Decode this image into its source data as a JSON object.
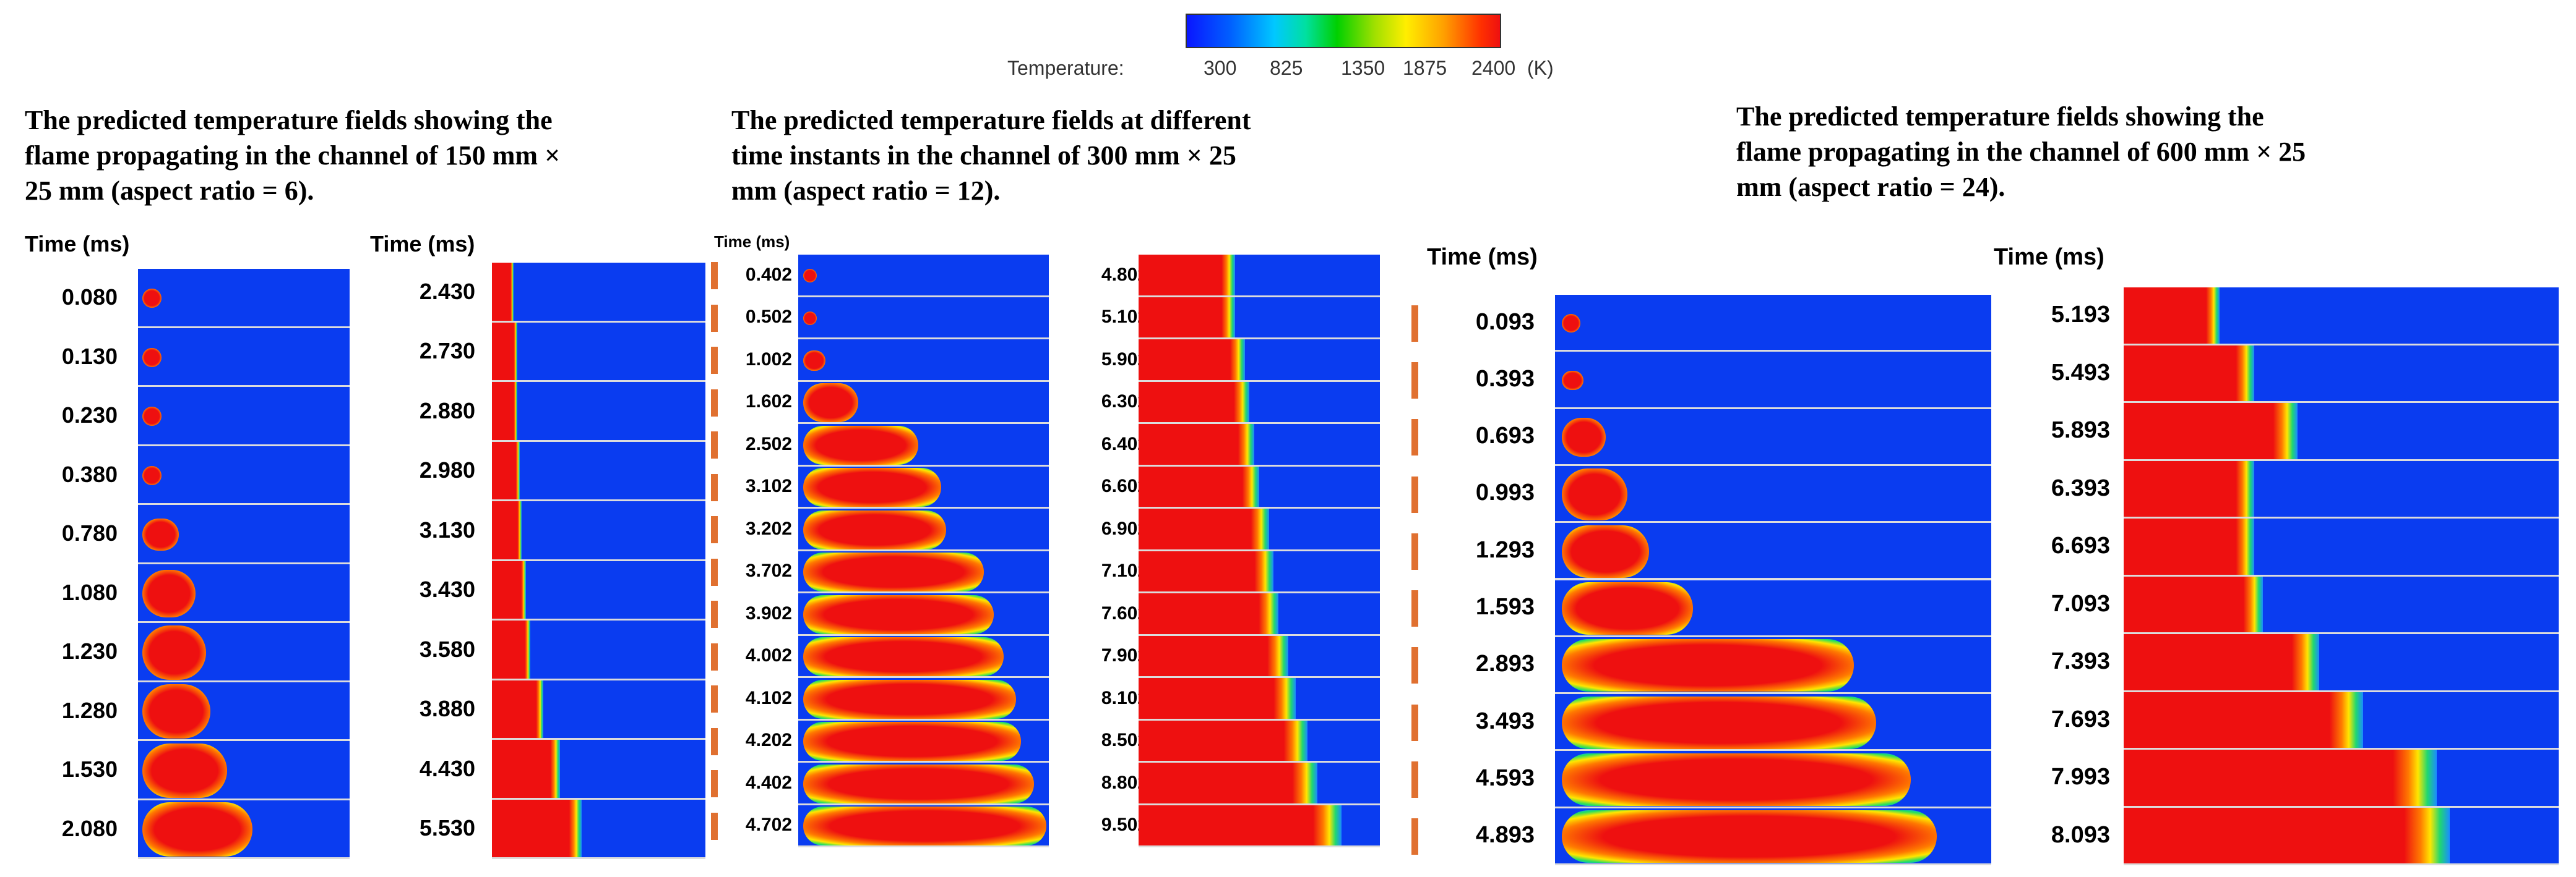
{
  "colorbar": {
    "label": "Temperature:",
    "ticks": [
      "300",
      "825",
      "1350",
      "1875",
      "2400"
    ],
    "unit": "(K)",
    "colors": [
      "#0a16ff",
      "#00c8ff",
      "#00d000",
      "#ffee00",
      "#ee1010"
    ]
  },
  "sections": [
    {
      "title": "The predicted temperature fields showing the flame propagating in the channel of 150 mm × 25 mm (aspect ratio = 6).",
      "title_lines": [
        "The predicted temperature fields showing the",
        "flame propagating in the channel of 150 mm ×",
        "25 mm (aspect ratio = 6)."
      ],
      "columns": [
        {
          "header": "Time (ms)",
          "times": [
            "0.080",
            "0.130",
            "0.230",
            "0.380",
            "0.780",
            "1.080",
            "1.230",
            "1.280",
            "1.530",
            "2.080"
          ],
          "flame_progress": [
            0.04,
            0.04,
            0.05,
            0.07,
            0.17,
            0.25,
            0.3,
            0.32,
            0.4,
            0.52
          ],
          "mode": "kernel"
        },
        {
          "header": "Time (ms)",
          "times": [
            "2.430",
            "2.730",
            "2.880",
            "2.980",
            "3.130",
            "3.430",
            "3.580",
            "3.880",
            "4.430",
            "5.530"
          ],
          "flame_progress": [
            0.1,
            0.12,
            0.12,
            0.13,
            0.14,
            0.16,
            0.18,
            0.24,
            0.32,
            0.42
          ],
          "mode": "front"
        }
      ]
    },
    {
      "title": "The predicted temperature fields at different time instants in the channel of 300 mm × 25 mm (aspect ratio = 12).",
      "title_lines": [
        "The predicted temperature fields at different",
        "time instants in the channel of 300 mm × 25",
        "mm (aspect ratio = 12)."
      ],
      "columns": [
        {
          "header": "Time (ms)",
          "times": [
            "0.402",
            "0.502",
            "1.002",
            "1.602",
            "2.502",
            "3.102",
            "3.202",
            "3.702",
            "3.902",
            "4.002",
            "4.102",
            "4.202",
            "4.402",
            "4.702"
          ],
          "flame_progress": [
            0.03,
            0.04,
            0.09,
            0.22,
            0.46,
            0.55,
            0.57,
            0.72,
            0.76,
            0.8,
            0.85,
            0.87,
            0.92,
            0.97
          ],
          "mode": "kernel"
        },
        {
          "header": "",
          "times": [
            "4.802",
            "5.102",
            "5.902",
            "6.302",
            "6.402",
            "6.602",
            "6.902",
            "7.102",
            "7.602",
            "7.902",
            "8.102",
            "8.502",
            "8.802",
            "9.502"
          ],
          "flame_progress": [
            0.4,
            0.4,
            0.44,
            0.46,
            0.48,
            0.5,
            0.54,
            0.56,
            0.58,
            0.62,
            0.65,
            0.7,
            0.74,
            0.84
          ],
          "mode": "front"
        }
      ]
    },
    {
      "title": "The predicted temperature fields showing the flame propagating in the channel of 600 mm × 25 mm (aspect ratio = 24).",
      "title_lines": [
        "The predicted temperature fields showing the",
        "flame propagating in the channel of 600 mm × 25",
        "mm (aspect ratio = 24)."
      ],
      "columns": [
        {
          "header": "Time (ms)",
          "times": [
            "0.093",
            "0.393",
            "0.693",
            "0.993",
            "1.293",
            "1.593",
            "2.893",
            "3.493",
            "4.593",
            "4.893"
          ],
          "flame_progress": [
            0.03,
            0.05,
            0.1,
            0.15,
            0.2,
            0.3,
            0.67,
            0.72,
            0.8,
            0.86
          ],
          "mode": "kernel"
        },
        {
          "header": "Time (ms)",
          "times": [
            "5.193",
            "5.493",
            "5.893",
            "6.393",
            "6.693",
            "7.093",
            "7.393",
            "7.693",
            "7.993",
            "8.093"
          ],
          "flame_progress": [
            0.22,
            0.3,
            0.4,
            0.3,
            0.3,
            0.32,
            0.45,
            0.55,
            0.72,
            0.75
          ],
          "mode": "front"
        }
      ]
    }
  ]
}
